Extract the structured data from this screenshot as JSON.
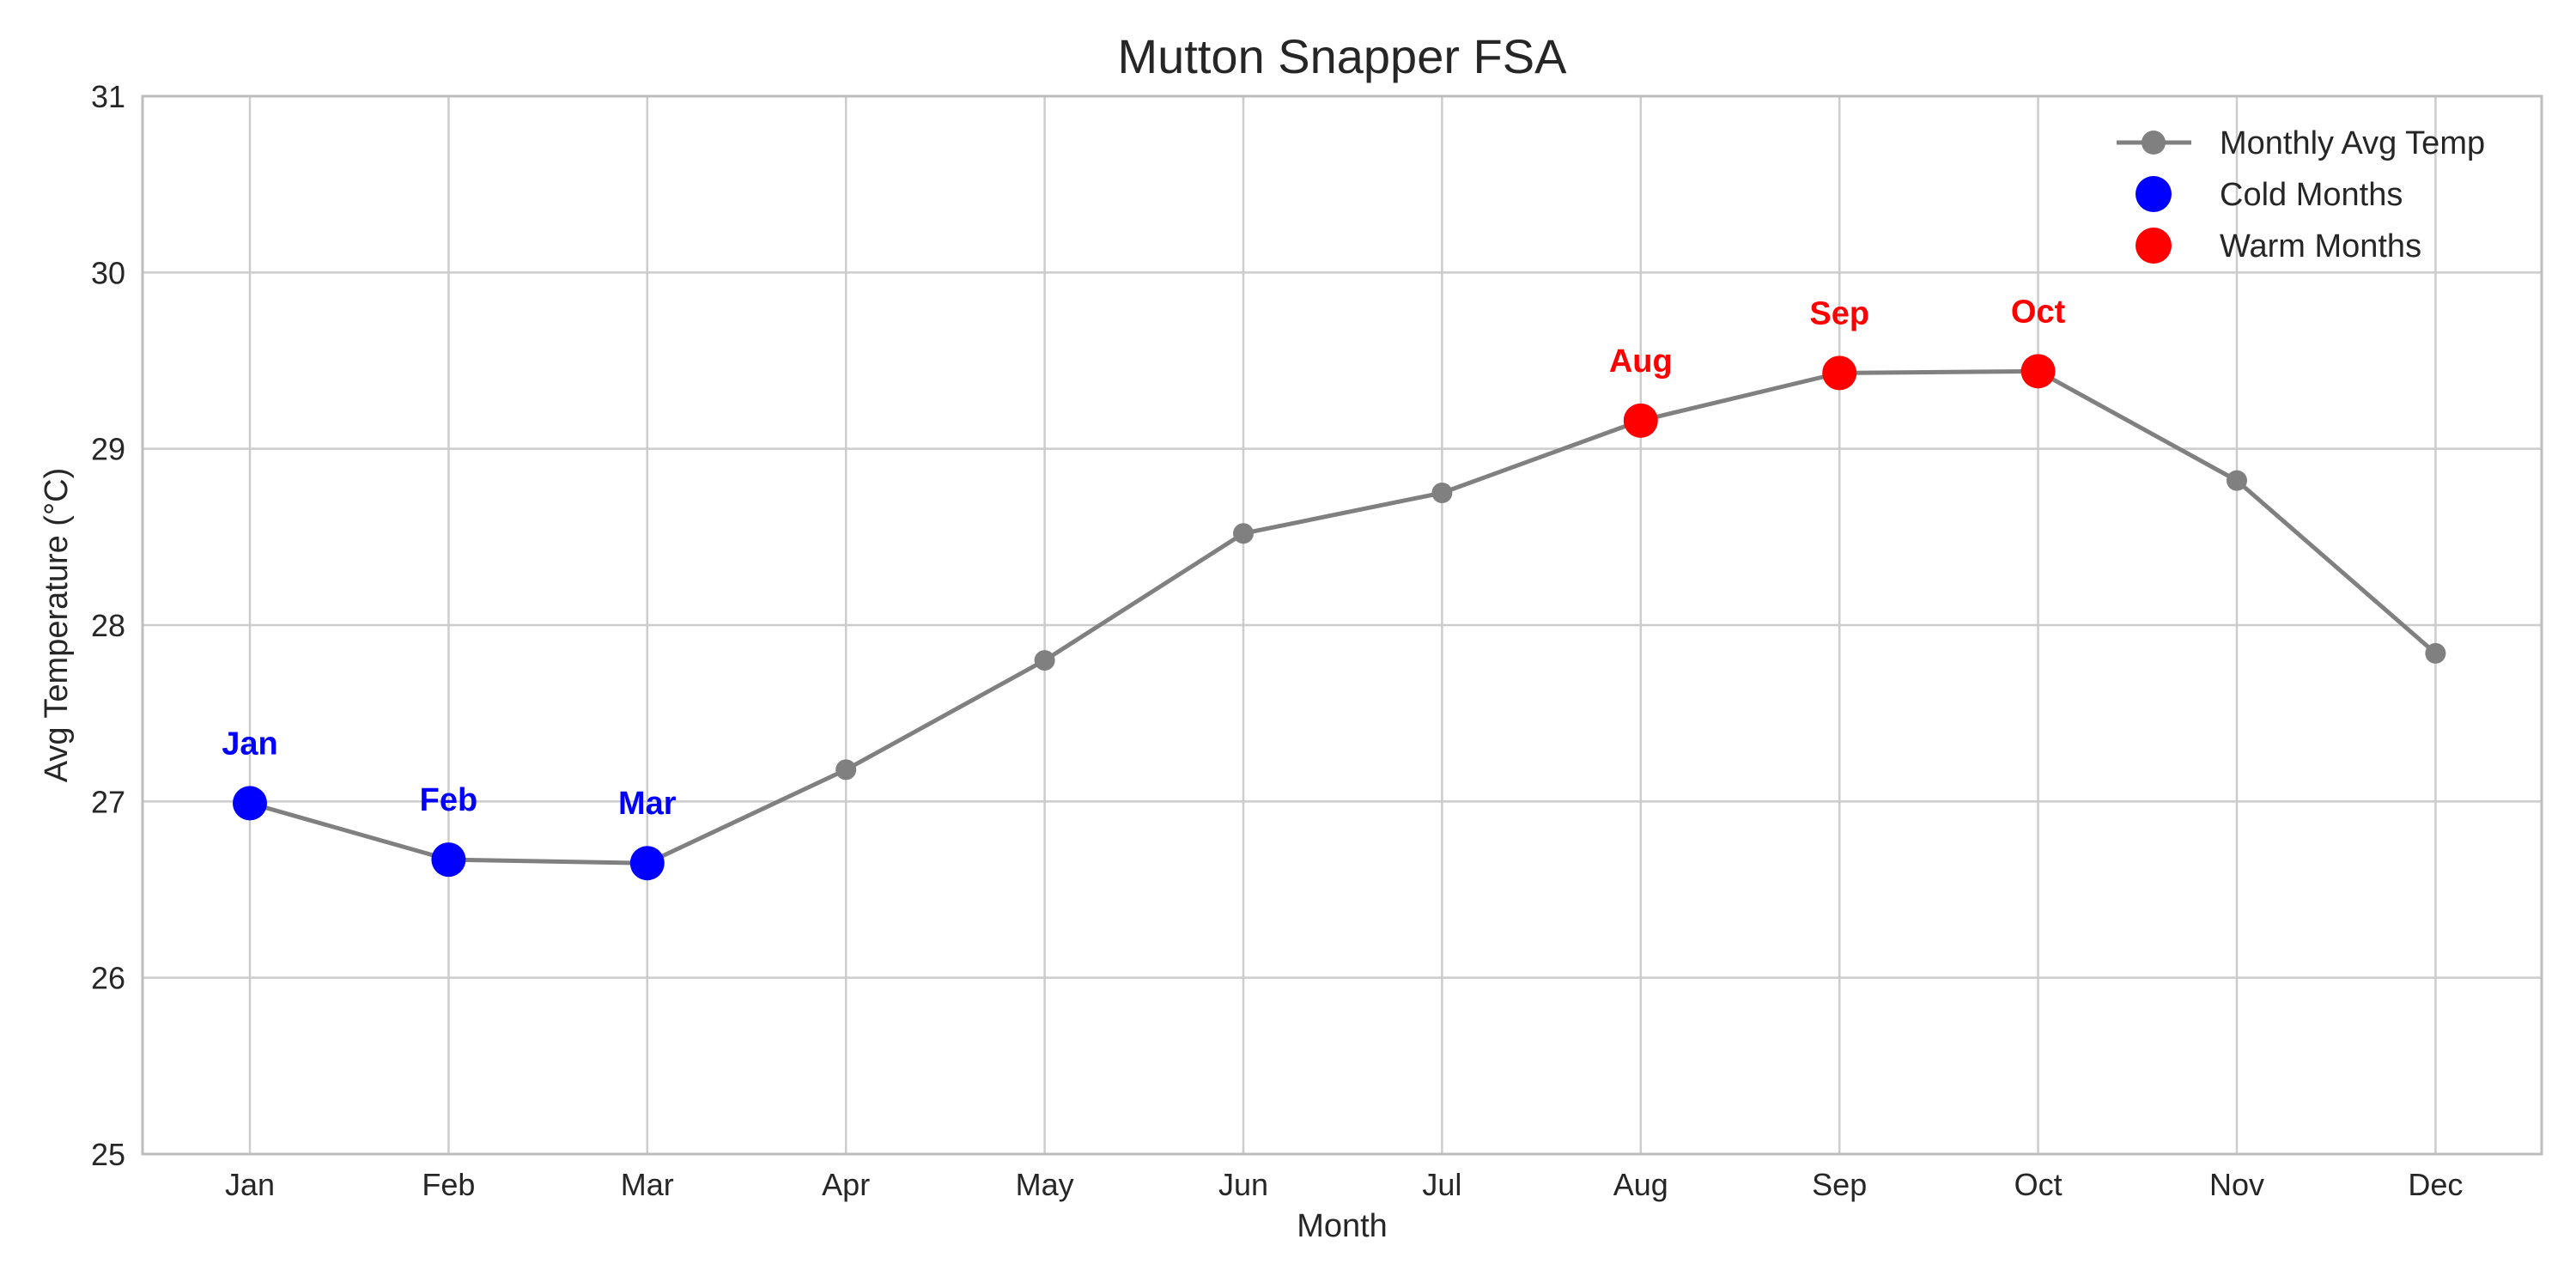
{
  "chart_data": {
    "type": "line",
    "title": "Mutton Snapper FSA",
    "xlabel": "Month",
    "ylabel": "Avg Temperature (°C)",
    "ylim": [
      25,
      31
    ],
    "yticks": [
      25,
      26,
      27,
      28,
      29,
      30,
      31
    ],
    "categories": [
      "Jan",
      "Feb",
      "Mar",
      "Apr",
      "May",
      "Jun",
      "Jul",
      "Aug",
      "Sep",
      "Oct",
      "Nov",
      "Dec"
    ],
    "grid": true,
    "legend_position": "top-right",
    "series": [
      {
        "name": "Monthly Avg Temp",
        "color": "#808080",
        "values": [
          26.99,
          26.67,
          26.65,
          27.18,
          27.8,
          28.52,
          28.75,
          29.16,
          29.43,
          29.44,
          28.82,
          27.84
        ]
      }
    ],
    "highlights": [
      {
        "name": "Cold Months",
        "color": "#0000ff",
        "months": [
          "Jan",
          "Feb",
          "Mar"
        ]
      },
      {
        "name": "Warm Months",
        "color": "#ff0000",
        "months": [
          "Aug",
          "Sep",
          "Oct"
        ]
      }
    ]
  }
}
